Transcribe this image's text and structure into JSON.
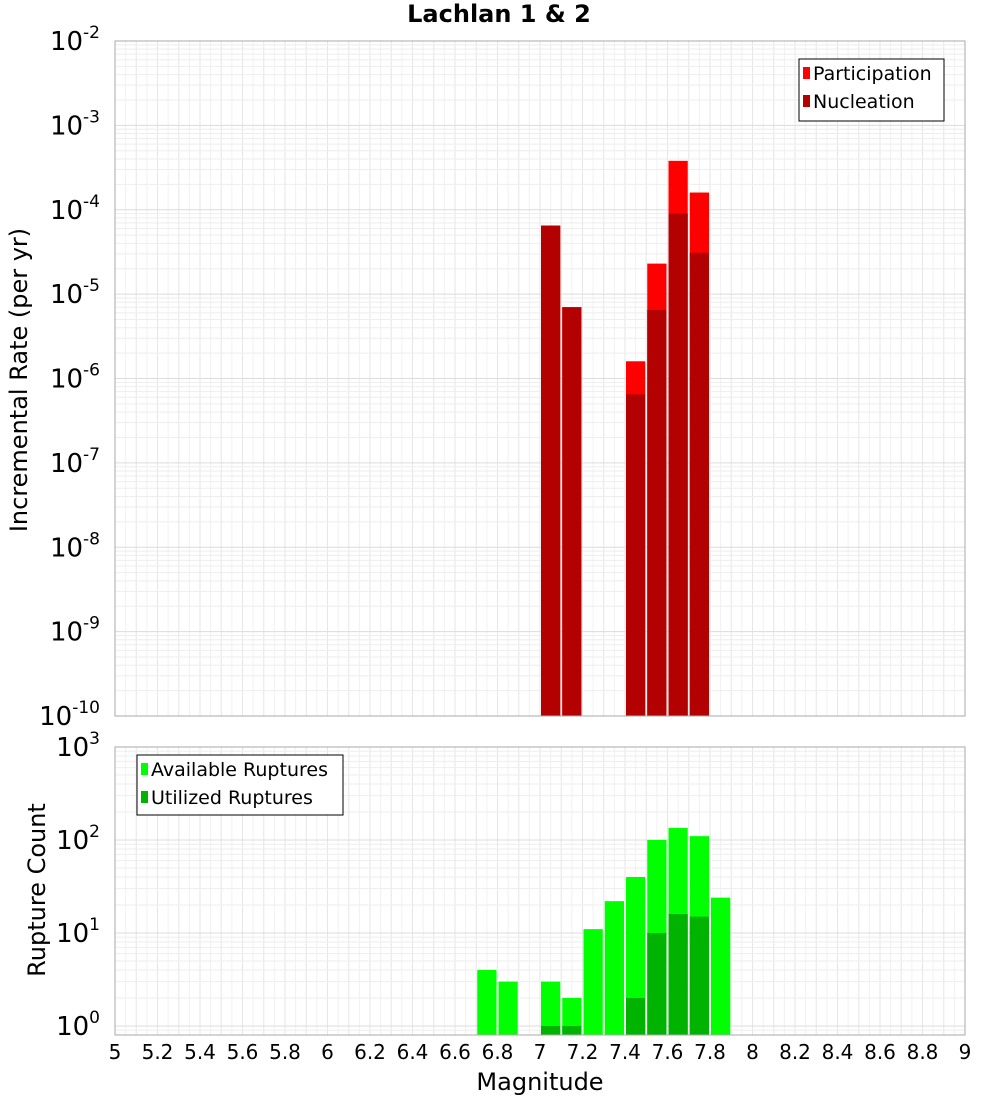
{
  "chart_data": [
    {
      "type": "bar",
      "title": "Lachlan 1 & 2",
      "xlabel": "",
      "ylabel": "Incremental Rate (per yr)",
      "yscale": "log",
      "xlim": [
        5,
        9
      ],
      "ylim": [
        1e-10,
        0.01
      ],
      "ytick_bases": [
        "10",
        "10",
        "10",
        "10",
        "10",
        "10",
        "10",
        "10",
        "10"
      ],
      "ytick_exponents": [
        "-10",
        "-9",
        "-8",
        "-7",
        "-6",
        "-5",
        "-4",
        "-3",
        "-2"
      ],
      "grid": true,
      "legend_position": "top-right",
      "bar_width": 0.1,
      "x": [
        7.05,
        7.15,
        7.45,
        7.55,
        7.65,
        7.75
      ],
      "series": [
        {
          "name": "Participation",
          "color": "#ff0000",
          "values": [
            6.5e-05,
            7e-06,
            1.6e-06,
            2.3e-05,
            0.00038,
            0.00016
          ]
        },
        {
          "name": "Nucleation",
          "color": "#b30000",
          "values": [
            6.5e-05,
            7e-06,
            6.5e-07,
            6.5e-06,
            9e-05,
            3.1e-05
          ]
        }
      ]
    },
    {
      "type": "bar",
      "title": "",
      "xlabel": "Magnitude",
      "ylabel": "Rupture Count",
      "yscale": "log",
      "xlim": [
        5,
        9
      ],
      "ylim": [
        0.8,
        1000
      ],
      "ytick_values": [
        1,
        10,
        100,
        1000
      ],
      "ytick_bases": [
        "10",
        "10",
        "10",
        "10"
      ],
      "ytick_exponents": [
        "0",
        "1",
        "2",
        "3"
      ],
      "xtick_labels": [
        "5",
        "5.2",
        "5.4",
        "5.6",
        "5.8",
        "6",
        "6.2",
        "6.4",
        "6.6",
        "6.8",
        "7",
        "7.2",
        "7.4",
        "7.6",
        "7.8",
        "8",
        "8.2",
        "8.4",
        "8.6",
        "8.8",
        "9"
      ],
      "grid": true,
      "legend_position": "top-left",
      "bar_width": 0.1,
      "x": [
        6.75,
        6.85,
        7.05,
        7.15,
        7.25,
        7.35,
        7.45,
        7.55,
        7.65,
        7.75,
        7.85
      ],
      "series": [
        {
          "name": "Available Ruptures",
          "color": "#00ff00",
          "values": [
            4,
            3,
            3,
            2,
            11,
            22,
            40,
            100,
            135,
            110,
            24
          ]
        },
        {
          "name": "Utilized Ruptures",
          "color": "#00b300",
          "values": [
            0,
            0,
            1,
            1,
            0,
            0,
            2,
            10,
            16,
            15,
            0
          ]
        }
      ]
    }
  ]
}
